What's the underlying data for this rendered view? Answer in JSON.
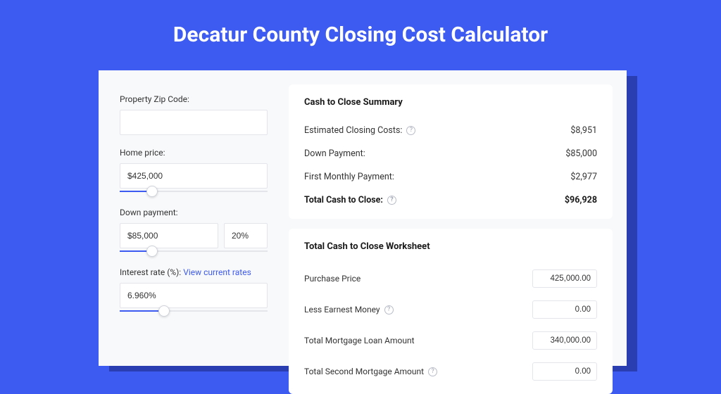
{
  "title": "Decatur County Closing Cost Calculator",
  "colors": {
    "page_bg": "#3d5af1",
    "card_bg": "#f8f9fb",
    "panel_bg": "#ffffff",
    "shadow": "#2a3eb1",
    "accent": "#3d5af1",
    "border": "#e3e5ea",
    "text": "#333333",
    "title_text": "#ffffff"
  },
  "form": {
    "zip_label": "Property Zip Code:",
    "zip_value": "",
    "home_price_label": "Home price:",
    "home_price_value": "$425,000",
    "home_price_slider_pct": 22,
    "down_payment_label": "Down payment:",
    "down_payment_value": "$85,000",
    "down_payment_pct": "20%",
    "down_payment_slider_pct": 22,
    "interest_label": "Interest rate (%): ",
    "interest_link": "View current rates",
    "interest_value": "6.960%",
    "interest_slider_pct": 30
  },
  "summary": {
    "title": "Cash to Close Summary",
    "rows": [
      {
        "label": "Estimated Closing Costs:",
        "help": true,
        "value": "$8,951",
        "bold": false
      },
      {
        "label": "Down Payment:",
        "help": false,
        "value": "$85,000",
        "bold": false
      },
      {
        "label": "First Monthly Payment:",
        "help": false,
        "value": "$2,977",
        "bold": false
      },
      {
        "label": "Total Cash to Close:",
        "help": true,
        "value": "$96,928",
        "bold": true
      }
    ]
  },
  "worksheet": {
    "title": "Total Cash to Close Worksheet",
    "rows": [
      {
        "label": "Purchase Price",
        "help": false,
        "value": "425,000.00"
      },
      {
        "label": "Less Earnest Money",
        "help": true,
        "value": "0.00"
      },
      {
        "label": "Total Mortgage Loan Amount",
        "help": false,
        "value": "340,000.00"
      },
      {
        "label": "Total Second Mortgage Amount",
        "help": true,
        "value": "0.00"
      }
    ]
  }
}
